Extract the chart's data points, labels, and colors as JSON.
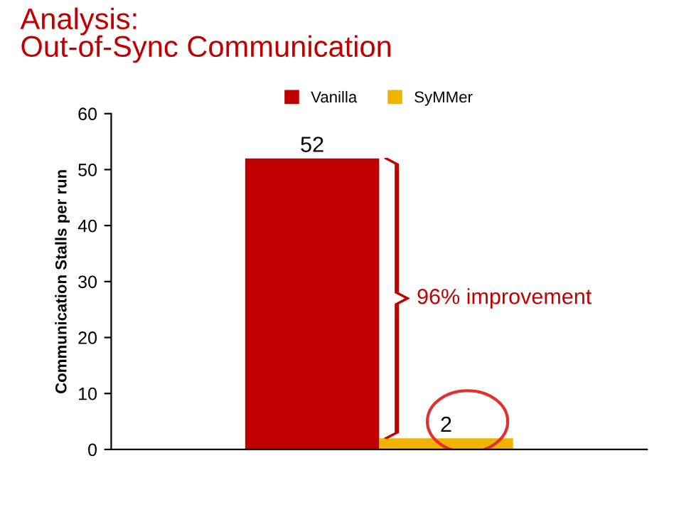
{
  "chart_data": {
    "type": "bar",
    "title": "Analysis:\nOut-of-Sync Communication",
    "ylabel": "Communication Stalls per run",
    "categories": [
      null
    ],
    "series": [
      {
        "name": "Vanilla",
        "color": "#c00000",
        "values": [
          52
        ]
      },
      {
        "name": "SyMMer",
        "color": "#f0b400",
        "values": [
          2
        ]
      }
    ],
    "ylim": [
      0,
      60
    ],
    "yticks": [
      0,
      10,
      20,
      30,
      40,
      50,
      60
    ],
    "grid": false,
    "legend": "top",
    "data_labels": true,
    "annotations": [
      "96% improvement"
    ]
  }
}
